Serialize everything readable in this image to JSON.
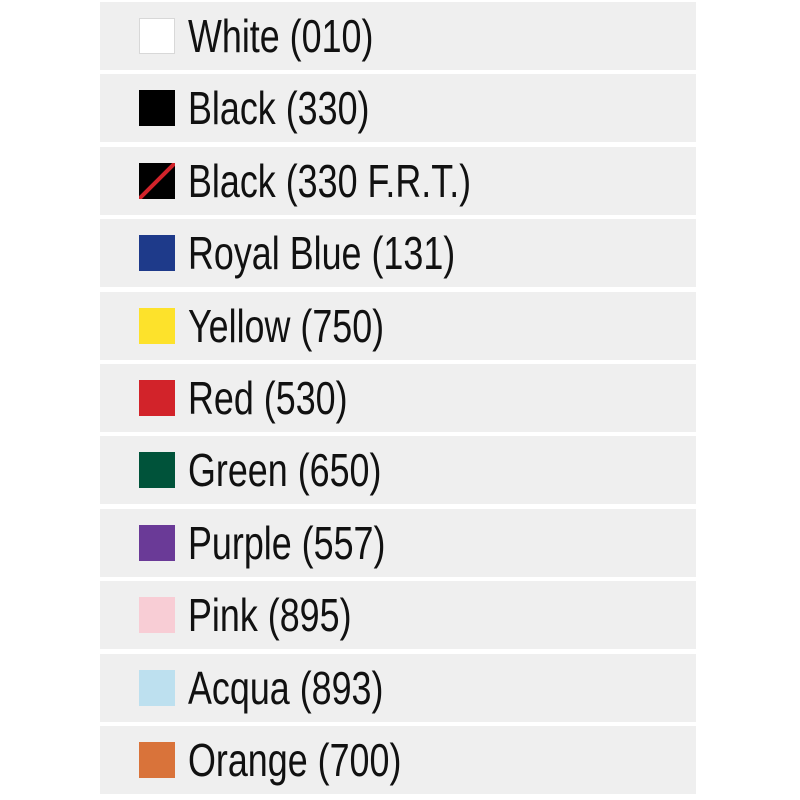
{
  "colors": [
    {
      "label": "White (010)",
      "hex": "#ffffff",
      "pattern": "solid"
    },
    {
      "label": "Black (330)",
      "hex": "#000000",
      "pattern": "solid"
    },
    {
      "label": "Black (330 F.R.T.)",
      "hex": "#000000",
      "stripe": "#d2232a",
      "pattern": "diagonal-stripe"
    },
    {
      "label": "Royal Blue (131)",
      "hex": "#1e3a8a",
      "pattern": "solid"
    },
    {
      "label": "Yellow (750)",
      "hex": "#fde22b",
      "pattern": "solid"
    },
    {
      "label": "Red (530)",
      "hex": "#d2232a",
      "pattern": "solid"
    },
    {
      "label": "Green (650)",
      "hex": "#00533a",
      "pattern": "solid"
    },
    {
      "label": "Purple (557)",
      "hex": "#6a3a97",
      "pattern": "solid"
    },
    {
      "label": "Pink (895)",
      "hex": "#f8cdd5",
      "pattern": "solid"
    },
    {
      "label": "Acqua (893)",
      "hex": "#bde0ef",
      "pattern": "solid"
    },
    {
      "label": "Orange (700)",
      "hex": "#d9733a",
      "pattern": "solid"
    }
  ]
}
